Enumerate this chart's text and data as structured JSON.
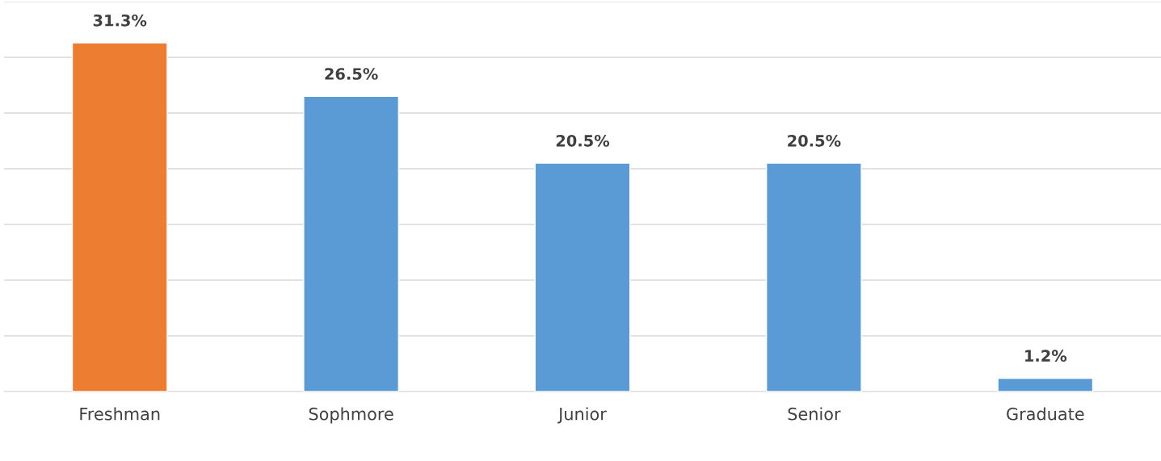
{
  "chart_data": {
    "type": "bar",
    "categories": [
      "Freshman",
      "Sophmore",
      "Junior",
      "Senior",
      "Graduate"
    ],
    "values": [
      31.3,
      26.5,
      20.5,
      20.5,
      1.2
    ],
    "colors": [
      "#ed7d31",
      "#5b9bd5",
      "#5b9bd5",
      "#5b9bd5",
      "#5b9bd5"
    ],
    "value_labels": [
      "31.3%",
      "26.5%",
      "20.5%",
      "20.5%",
      "1.2%"
    ],
    "ylim": [
      0,
      35
    ],
    "yticks": [
      {
        "value": 0,
        "label": null
      },
      {
        "value": 5,
        "label": null
      },
      {
        "value": 10,
        "label": null
      },
      {
        "value": 15,
        "label": null
      },
      {
        "value": 20,
        "label": null
      },
      {
        "value": 25,
        "label": null
      },
      {
        "value": 30,
        "label": null
      },
      {
        "value": 35,
        "label": null
      }
    ],
    "tick_labels": "x",
    "grid": "y"
  }
}
